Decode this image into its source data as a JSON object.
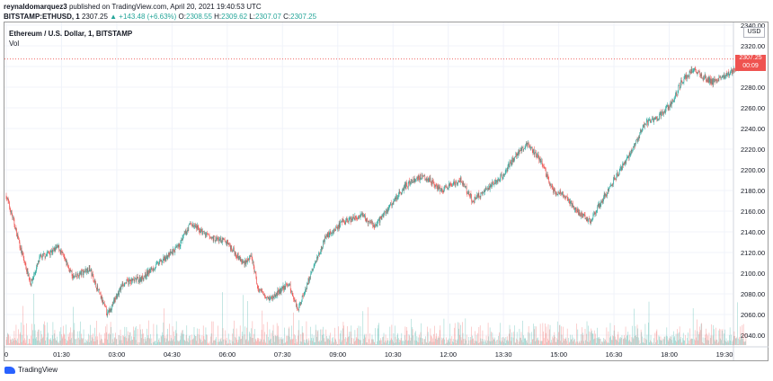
{
  "header": {
    "publisher": "reynaldomarquez3",
    "published_text": "published on TradingView.com, April 20, 2021 19:40:53 UTC",
    "symbol": "BITSTAMP:ETHUSD, 1",
    "last": "2307.25",
    "change": "▲ +143.48 (+6.63%)",
    "ohlc": {
      "O": "2308.55",
      "H": "2309.62",
      "L": "2307.07",
      "C": "2307.25"
    }
  },
  "legend": {
    "title": "Ethereum / U.S. Dollar, 1, BITSTAMP",
    "vol": "Vol"
  },
  "currency": "USD",
  "price_tag": {
    "price": "2307.25",
    "countdown": "00:09"
  },
  "footer": {
    "brand": "TradingView"
  },
  "colors": {
    "up": "#26a69a",
    "down": "#ef5350",
    "grid": "#f0f3fa",
    "axis_text": "#131722"
  },
  "chart_data": {
    "type": "candlestick",
    "title": "Ethereum / U.S. Dollar, 1, BITSTAMP",
    "x_ticks": [
      "0",
      "01:30",
      "03:00",
      "04:30",
      "06:00",
      "07:30",
      "09:00",
      "10:30",
      "12:00",
      "13:30",
      "15:00",
      "16:30",
      "18:00",
      "19:30"
    ],
    "x_tick_minutes": [
      0,
      90,
      180,
      270,
      360,
      450,
      540,
      630,
      720,
      810,
      900,
      990,
      1080,
      1170
    ],
    "y_ticks": [
      2040,
      2060,
      2080,
      2100,
      2120,
      2140,
      2160,
      2180,
      2200,
      2220,
      2240,
      2260,
      2280,
      2300,
      2320,
      2340
    ],
    "ylim": [
      2030,
      2340
    ],
    "last_price": 2307.25,
    "price_path": [
      {
        "t": 0,
        "p": 2175
      },
      {
        "t": 12,
        "p": 2150
      },
      {
        "t": 25,
        "p": 2120
      },
      {
        "t": 40,
        "p": 2090
      },
      {
        "t": 55,
        "p": 2115
      },
      {
        "t": 85,
        "p": 2125
      },
      {
        "t": 110,
        "p": 2095
      },
      {
        "t": 135,
        "p": 2105
      },
      {
        "t": 165,
        "p": 2060
      },
      {
        "t": 190,
        "p": 2090
      },
      {
        "t": 220,
        "p": 2095
      },
      {
        "t": 250,
        "p": 2110
      },
      {
        "t": 280,
        "p": 2125
      },
      {
        "t": 300,
        "p": 2148
      },
      {
        "t": 330,
        "p": 2135
      },
      {
        "t": 360,
        "p": 2130
      },
      {
        "t": 385,
        "p": 2110
      },
      {
        "t": 400,
        "p": 2115
      },
      {
        "t": 410,
        "p": 2085
      },
      {
        "t": 430,
        "p": 2075
      },
      {
        "t": 460,
        "p": 2090
      },
      {
        "t": 475,
        "p": 2065
      },
      {
        "t": 500,
        "p": 2105
      },
      {
        "t": 520,
        "p": 2135
      },
      {
        "t": 550,
        "p": 2150
      },
      {
        "t": 580,
        "p": 2155
      },
      {
        "t": 600,
        "p": 2145
      },
      {
        "t": 625,
        "p": 2165
      },
      {
        "t": 650,
        "p": 2185
      },
      {
        "t": 680,
        "p": 2195
      },
      {
        "t": 710,
        "p": 2180
      },
      {
        "t": 740,
        "p": 2190
      },
      {
        "t": 760,
        "p": 2170
      },
      {
        "t": 790,
        "p": 2185
      },
      {
        "t": 810,
        "p": 2195
      },
      {
        "t": 830,
        "p": 2215
      },
      {
        "t": 850,
        "p": 2225
      },
      {
        "t": 870,
        "p": 2210
      },
      {
        "t": 890,
        "p": 2180
      },
      {
        "t": 910,
        "p": 2175
      },
      {
        "t": 930,
        "p": 2160
      },
      {
        "t": 950,
        "p": 2150
      },
      {
        "t": 975,
        "p": 2175
      },
      {
        "t": 1000,
        "p": 2200
      },
      {
        "t": 1020,
        "p": 2220
      },
      {
        "t": 1040,
        "p": 2245
      },
      {
        "t": 1060,
        "p": 2250
      },
      {
        "t": 1085,
        "p": 2265
      },
      {
        "t": 1100,
        "p": 2285
      },
      {
        "t": 1120,
        "p": 2298
      },
      {
        "t": 1135,
        "p": 2290
      },
      {
        "t": 1150,
        "p": 2285
      },
      {
        "t": 1170,
        "p": 2290
      },
      {
        "t": 1190,
        "p": 2300
      },
      {
        "t": 1205,
        "p": 2307.25
      }
    ],
    "volume_note": "per-candle volume bars in lower pane"
  }
}
